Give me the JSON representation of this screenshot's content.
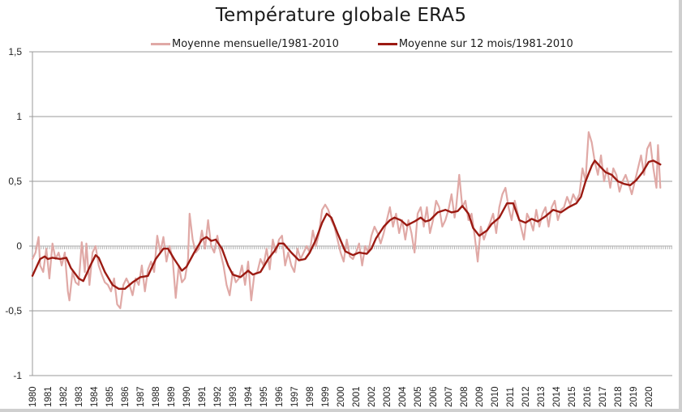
{
  "chart_data": {
    "type": "line",
    "title": "Température globale ERA5",
    "xlabel": "",
    "ylabel": "",
    "xlim": [
      1980,
      2020.75
    ],
    "ylim": [
      -1,
      1.5
    ],
    "y_ticks": [
      "-1",
      "-0,5",
      "0",
      "0,5",
      "1",
      "1,5"
    ],
    "y_tick_values": [
      -1,
      -0.5,
      0,
      0.5,
      1,
      1.5
    ],
    "x_ticks": [
      "1980",
      "1981",
      "1982",
      "1983",
      "1984",
      "1985",
      "1986",
      "1987",
      "1988",
      "1989",
      "1990",
      "1991",
      "1992",
      "1993",
      "1994",
      "1995",
      "1996",
      "1997",
      "1998",
      "1999",
      "2000",
      "2001",
      "2002",
      "2003",
      "2004",
      "2005",
      "2006",
      "2007",
      "2008",
      "2009",
      "2010",
      "2011",
      "2012",
      "2013",
      "2014",
      "2015",
      "2016",
      "2017",
      "2018",
      "2019",
      "2020"
    ],
    "grid": "horizontal",
    "legend": "top-center",
    "series": [
      {
        "name": "Moyenne mensuelle/1981-2010",
        "color": "#e0a9a6",
        "x": [
          1980.0,
          1980.2,
          1980.4,
          1980.5,
          1980.7,
          1980.9,
          1981.1,
          1981.3,
          1981.5,
          1981.7,
          1981.9,
          1982.1,
          1982.3,
          1982.4,
          1982.6,
          1982.8,
          1983.0,
          1983.2,
          1983.4,
          1983.5,
          1983.7,
          1983.9,
          1984.1,
          1984.3,
          1984.5,
          1984.7,
          1984.9,
          1985.1,
          1985.3,
          1985.5,
          1985.7,
          1985.9,
          1986.1,
          1986.3,
          1986.5,
          1986.7,
          1986.9,
          1987.1,
          1987.3,
          1987.5,
          1987.7,
          1987.9,
          1988.1,
          1988.3,
          1988.5,
          1988.7,
          1988.9,
          1989.1,
          1989.3,
          1989.5,
          1989.7,
          1989.9,
          1990.1,
          1990.2,
          1990.4,
          1990.6,
          1990.8,
          1991.0,
          1991.2,
          1991.4,
          1991.6,
          1991.8,
          1992.0,
          1992.2,
          1992.4,
          1992.6,
          1992.8,
          1993.0,
          1993.2,
          1993.4,
          1993.6,
          1993.8,
          1994.0,
          1994.2,
          1994.4,
          1994.6,
          1994.8,
          1995.0,
          1995.2,
          1995.4,
          1995.6,
          1995.8,
          1996.0,
          1996.2,
          1996.4,
          1996.6,
          1996.8,
          1997.0,
          1997.2,
          1997.4,
          1997.6,
          1997.8,
          1998.0,
          1998.2,
          1998.4,
          1998.6,
          1998.8,
          1999.0,
          1999.2,
          1999.4,
          1999.6,
          1999.8,
          2000.0,
          2000.2,
          2000.4,
          2000.6,
          2000.8,
          2001.0,
          2001.2,
          2001.4,
          2001.6,
          2001.8,
          2002.0,
          2002.2,
          2002.4,
          2002.6,
          2002.8,
          2003.0,
          2003.2,
          2003.4,
          2003.6,
          2003.8,
          2004.0,
          2004.2,
          2004.4,
          2004.6,
          2004.8,
          2005.0,
          2005.2,
          2005.4,
          2005.6,
          2005.8,
          2006.0,
          2006.2,
          2006.4,
          2006.6,
          2006.8,
          2007.0,
          2007.2,
          2007.4,
          2007.5,
          2007.7,
          2007.9,
          2008.1,
          2008.3,
          2008.5,
          2008.7,
          2008.9,
          2009.1,
          2009.3,
          2009.5,
          2009.7,
          2009.9,
          2010.1,
          2010.3,
          2010.5,
          2010.7,
          2010.9,
          2011.1,
          2011.3,
          2011.5,
          2011.7,
          2011.9,
          2012.1,
          2012.3,
          2012.5,
          2012.7,
          2012.9,
          2013.1,
          2013.3,
          2013.5,
          2013.7,
          2013.9,
          2014.1,
          2014.3,
          2014.5,
          2014.7,
          2014.9,
          2015.1,
          2015.3,
          2015.5,
          2015.7,
          2015.9,
          2016.0,
          2016.1,
          2016.3,
          2016.5,
          2016.7,
          2016.9,
          2017.1,
          2017.3,
          2017.5,
          2017.7,
          2017.9,
          2018.1,
          2018.3,
          2018.5,
          2018.7,
          2018.9,
          2019.1,
          2019.3,
          2019.5,
          2019.7,
          2019.9,
          2020.1,
          2020.3,
          2020.5,
          2020.6,
          2020.75
        ],
        "values": [
          -0.1,
          -0.05,
          0.07,
          -0.15,
          -0.2,
          -0.02,
          -0.25,
          0.02,
          -0.1,
          -0.05,
          -0.15,
          -0.05,
          -0.35,
          -0.42,
          -0.2,
          -0.28,
          -0.3,
          0.03,
          -0.2,
          0.02,
          -0.3,
          -0.05,
          0.0,
          -0.15,
          -0.22,
          -0.28,
          -0.3,
          -0.35,
          -0.25,
          -0.45,
          -0.48,
          -0.3,
          -0.25,
          -0.3,
          -0.38,
          -0.25,
          -0.3,
          -0.15,
          -0.35,
          -0.18,
          -0.12,
          -0.2,
          0.08,
          -0.05,
          0.07,
          -0.12,
          0.0,
          -0.1,
          -0.4,
          -0.15,
          -0.28,
          -0.25,
          -0.1,
          0.25,
          0.05,
          -0.05,
          -0.02,
          0.12,
          -0.02,
          0.2,
          0.0,
          -0.05,
          0.08,
          -0.05,
          -0.15,
          -0.3,
          -0.38,
          -0.2,
          -0.28,
          -0.25,
          -0.15,
          -0.3,
          -0.12,
          -0.42,
          -0.22,
          -0.2,
          -0.1,
          -0.15,
          -0.02,
          -0.18,
          0.05,
          -0.05,
          0.05,
          0.08,
          -0.15,
          -0.05,
          -0.15,
          -0.2,
          -0.02,
          -0.1,
          -0.05,
          0.0,
          -0.05,
          0.12,
          0.0,
          0.1,
          0.28,
          0.32,
          0.28,
          0.2,
          0.15,
          0.05,
          -0.05,
          -0.12,
          0.05,
          -0.08,
          -0.1,
          -0.05,
          0.02,
          -0.15,
          0.0,
          -0.05,
          0.08,
          0.15,
          0.1,
          0.02,
          0.1,
          0.2,
          0.3,
          0.15,
          0.25,
          0.1,
          0.2,
          0.05,
          0.2,
          0.1,
          -0.05,
          0.25,
          0.3,
          0.15,
          0.3,
          0.1,
          0.2,
          0.35,
          0.3,
          0.15,
          0.2,
          0.28,
          0.4,
          0.22,
          0.3,
          0.55,
          0.3,
          0.35,
          0.2,
          0.25,
          0.08,
          -0.12,
          0.15,
          0.05,
          0.12,
          0.18,
          0.25,
          0.1,
          0.3,
          0.4,
          0.45,
          0.3,
          0.2,
          0.35,
          0.25,
          0.15,
          0.05,
          0.25,
          0.2,
          0.12,
          0.28,
          0.15,
          0.25,
          0.3,
          0.15,
          0.3,
          0.35,
          0.2,
          0.28,
          0.3,
          0.38,
          0.32,
          0.4,
          0.35,
          0.4,
          0.6,
          0.5,
          0.7,
          0.88,
          0.8,
          0.65,
          0.55,
          0.7,
          0.5,
          0.6,
          0.45,
          0.6,
          0.55,
          0.42,
          0.5,
          0.55,
          0.48,
          0.4,
          0.5,
          0.6,
          0.7,
          0.55,
          0.75,
          0.8,
          0.6,
          0.45,
          0.78,
          0.45
        ]
      },
      {
        "name": "Moyenne sur 12 mois/1981-2010",
        "color": "#9b1a12",
        "x": [
          1980.0,
          1980.5,
          1980.8,
          1981.0,
          1981.3,
          1981.8,
          1982.2,
          1982.5,
          1983.0,
          1983.3,
          1983.8,
          1984.1,
          1984.3,
          1984.7,
          1985.2,
          1985.6,
          1986.0,
          1986.5,
          1987.0,
          1987.5,
          1988.0,
          1988.5,
          1988.8,
          1989.2,
          1989.7,
          1990.0,
          1990.5,
          1991.0,
          1991.3,
          1991.6,
          1991.9,
          1992.3,
          1992.7,
          1993.0,
          1993.5,
          1994.0,
          1994.3,
          1994.8,
          1995.3,
          1995.7,
          1996.0,
          1996.3,
          1996.8,
          1997.3,
          1997.7,
          1998.0,
          1998.4,
          1998.8,
          1999.1,
          1999.4,
          1999.8,
          2000.3,
          2000.8,
          2001.2,
          2001.7,
          2002.0,
          2002.3,
          2002.8,
          2003.2,
          2003.5,
          2003.9,
          2004.3,
          2004.8,
          2005.2,
          2005.5,
          2005.8,
          2006.3,
          2006.8,
          2007.2,
          2007.6,
          2007.9,
          2008.3,
          2008.6,
          2009.0,
          2009.5,
          2009.8,
          2010.3,
          2010.8,
          2011.2,
          2011.6,
          2012.0,
          2012.4,
          2012.8,
          2013.3,
          2013.8,
          2014.3,
          2014.8,
          2015.3,
          2015.6,
          2015.9,
          2016.3,
          2016.5,
          2016.8,
          2017.2,
          2017.6,
          2018.0,
          2018.4,
          2018.8,
          2019.2,
          2019.6,
          2020.0,
          2020.3,
          2020.6,
          2020.75
        ],
        "values": [
          -0.23,
          -0.1,
          -0.08,
          -0.1,
          -0.09,
          -0.1,
          -0.09,
          -0.17,
          -0.25,
          -0.27,
          -0.14,
          -0.07,
          -0.09,
          -0.2,
          -0.3,
          -0.33,
          -0.33,
          -0.28,
          -0.24,
          -0.23,
          -0.1,
          -0.02,
          -0.02,
          -0.1,
          -0.19,
          -0.16,
          -0.05,
          0.05,
          0.07,
          0.04,
          0.05,
          -0.02,
          -0.15,
          -0.22,
          -0.24,
          -0.19,
          -0.22,
          -0.2,
          -0.1,
          -0.04,
          0.02,
          0.02,
          -0.05,
          -0.11,
          -0.1,
          -0.05,
          0.05,
          0.18,
          0.25,
          0.22,
          0.1,
          -0.04,
          -0.07,
          -0.05,
          -0.06,
          -0.02,
          0.06,
          0.15,
          0.2,
          0.22,
          0.2,
          0.16,
          0.19,
          0.22,
          0.19,
          0.2,
          0.26,
          0.28,
          0.26,
          0.27,
          0.31,
          0.25,
          0.14,
          0.08,
          0.12,
          0.17,
          0.22,
          0.33,
          0.33,
          0.2,
          0.18,
          0.21,
          0.19,
          0.23,
          0.28,
          0.26,
          0.3,
          0.33,
          0.38,
          0.5,
          0.62,
          0.66,
          0.62,
          0.57,
          0.55,
          0.5,
          0.48,
          0.47,
          0.51,
          0.57,
          0.65,
          0.66,
          0.64,
          0.63
        ]
      }
    ]
  }
}
